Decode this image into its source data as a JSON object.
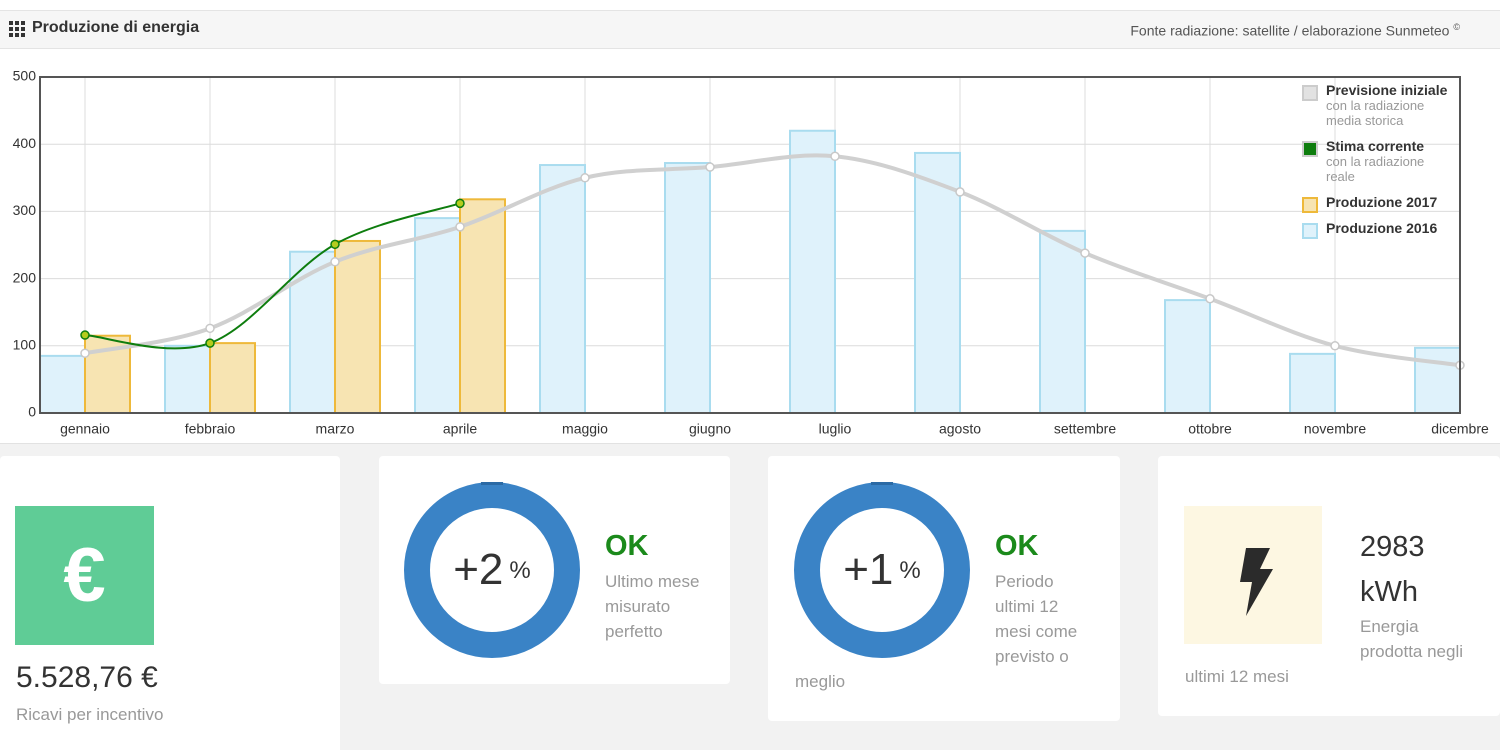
{
  "header": {
    "title": "Produzione di energia",
    "source": "Fonte radiazione: satellite / elaborazione Sunmeteo",
    "source_mark": "©"
  },
  "chart_data": {
    "type": "bar",
    "categories": [
      "gennaio",
      "febbraio",
      "marzo",
      "aprile",
      "maggio",
      "giugno",
      "luglio",
      "agosto",
      "settembre",
      "ottobre",
      "novembre",
      "dicembre"
    ],
    "ylim": [
      0,
      500
    ],
    "yticks": [
      0,
      100,
      200,
      300,
      400,
      500
    ],
    "grid": true,
    "legend": "top-right",
    "series": [
      {
        "name": "Previsione iniziale",
        "note": "con la radiazione media storica",
        "type": "line",
        "color": "#d0d0d0",
        "values": [
          89,
          126,
          225,
          277,
          350,
          366,
          382,
          329,
          238,
          170,
          100,
          71
        ]
      },
      {
        "name": "Stima corrente",
        "note": "con la radiazione reale",
        "type": "line",
        "color": "#0e7d0e",
        "values": [
          116,
          104,
          251,
          312,
          null,
          null,
          null,
          null,
          null,
          null,
          null,
          null
        ]
      },
      {
        "name": "Produzione 2017",
        "type": "bar",
        "color": "#eeb93a",
        "values": [
          115,
          104,
          256,
          318,
          null,
          null,
          null,
          null,
          null,
          null,
          null,
          null
        ]
      },
      {
        "name": "Produzione 2016",
        "type": "bar",
        "color": "#a9dcef",
        "values": [
          85,
          100,
          240,
          290,
          369,
          372,
          420,
          387,
          271,
          168,
          88,
          97
        ]
      }
    ]
  },
  "cards": [
    {
      "icon": "€",
      "value": "5.528,76 €",
      "label": "Ricavi per incentivo"
    },
    {
      "percent": "+2",
      "unit": "%",
      "status": "OK",
      "lines": [
        "Ultimo mese",
        "misurato",
        "perfetto"
      ]
    },
    {
      "percent": "+1",
      "unit": "%",
      "status": "OK",
      "lines": [
        "Periodo",
        "ultimi 12",
        "mesi come",
        "previsto o",
        "meglio"
      ]
    },
    {
      "value": "2983",
      "unit": "kWh",
      "lines": [
        "Energia",
        "prodotta negli",
        "ultimi 12 mesi"
      ]
    }
  ]
}
